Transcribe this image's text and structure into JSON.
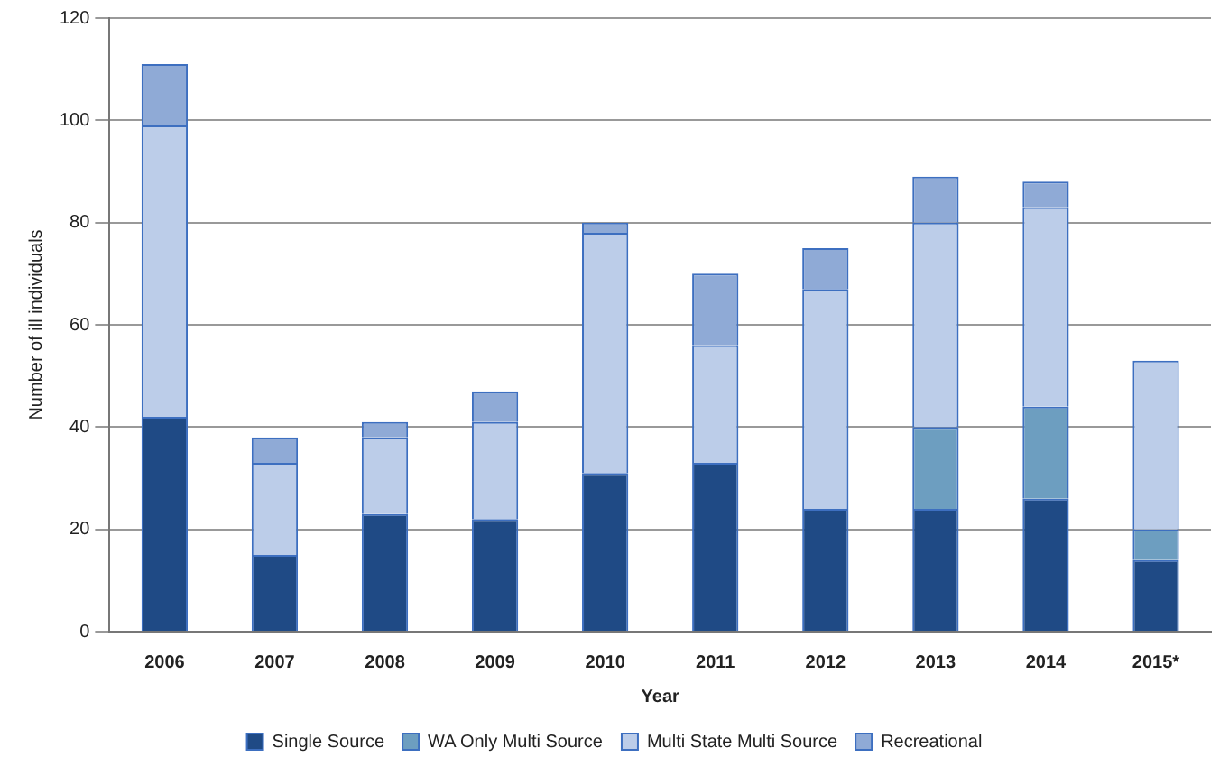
{
  "chart_data": {
    "type": "bar",
    "stacked": true,
    "xlabel": "Year",
    "ylabel": "Number of ill individuals",
    "categories": [
      "2006",
      "2007",
      "2008",
      "2009",
      "2010",
      "2011",
      "2012",
      "2013",
      "2014",
      "2015*"
    ],
    "series": [
      {
        "name": "Single Source",
        "color": "#1f4a85",
        "values": [
          42,
          15,
          23,
          22,
          31,
          33,
          24,
          24,
          26,
          14
        ]
      },
      {
        "name": "WA Only Multi Source",
        "color": "#6d9ec0",
        "values": [
          0,
          0,
          0,
          0,
          0,
          0,
          0,
          16,
          18,
          6
        ]
      },
      {
        "name": "Multi State Multi Source",
        "color": "#bccde9",
        "values": [
          57,
          18,
          15,
          19,
          47,
          23,
          43,
          40,
          39,
          33
        ]
      },
      {
        "name": "Recreational",
        "color": "#8faad6",
        "values": [
          12,
          5,
          3,
          6,
          2,
          14,
          8,
          9,
          5,
          0
        ]
      }
    ],
    "ylim": [
      0,
      120
    ],
    "yticks": [
      0,
      20,
      40,
      60,
      80,
      100,
      120
    ],
    "grid": "y",
    "legend": "bottom"
  }
}
